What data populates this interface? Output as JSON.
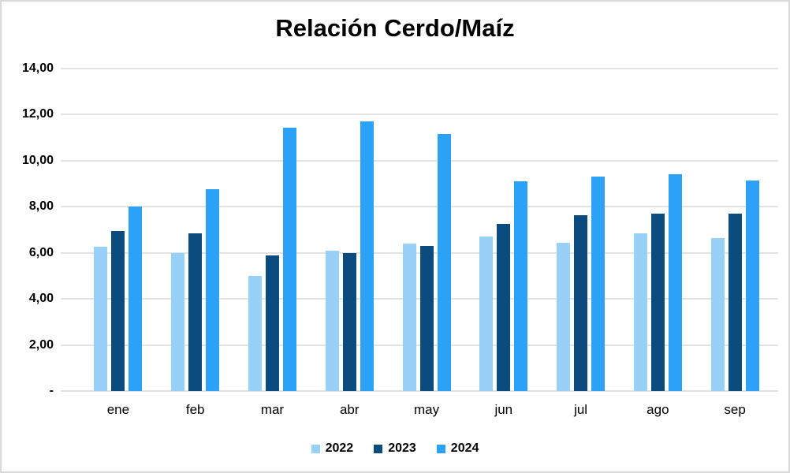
{
  "title": "Relación Cerdo/Maíz",
  "frame": {
    "background": "#ffffff",
    "border_color": "#d9d9d9"
  },
  "chart_data": {
    "type": "bar",
    "title": "Relación Cerdo/Maíz",
    "xlabel": "",
    "ylabel": "",
    "ylim": [
      0,
      14
    ],
    "grid": "horizontal",
    "gridline_color": "#e2e2e2",
    "legend_position": "bottom",
    "categories": [
      "ene",
      "feb",
      "mar",
      "abr",
      "may",
      "jun",
      "jul",
      "ago",
      "sep"
    ],
    "series": [
      {
        "name": "2022",
        "color": "#97d1f7",
        "values": [
          6.25,
          6.0,
          5.0,
          6.1,
          6.4,
          6.7,
          6.45,
          6.85,
          6.65
        ]
      },
      {
        "name": "2023",
        "color": "#0b4b7d",
        "values": [
          6.95,
          6.85,
          5.9,
          6.0,
          6.3,
          7.25,
          7.65,
          7.7,
          7.7
        ]
      },
      {
        "name": "2024",
        "color": "#2ba2f7",
        "values": [
          8.0,
          8.75,
          11.45,
          11.7,
          11.15,
          9.1,
          9.3,
          9.4,
          9.15
        ]
      }
    ],
    "y_ticks": [
      {
        "value": 14,
        "label": "14,00"
      },
      {
        "value": 12,
        "label": "12,00"
      },
      {
        "value": 10,
        "label": "10,00"
      },
      {
        "value": 8,
        "label": "8,00"
      },
      {
        "value": 6,
        "label": "6,00"
      },
      {
        "value": 4,
        "label": "4,00"
      },
      {
        "value": 2,
        "label": "2,00"
      },
      {
        "value": 0,
        "label": "-"
      }
    ]
  }
}
